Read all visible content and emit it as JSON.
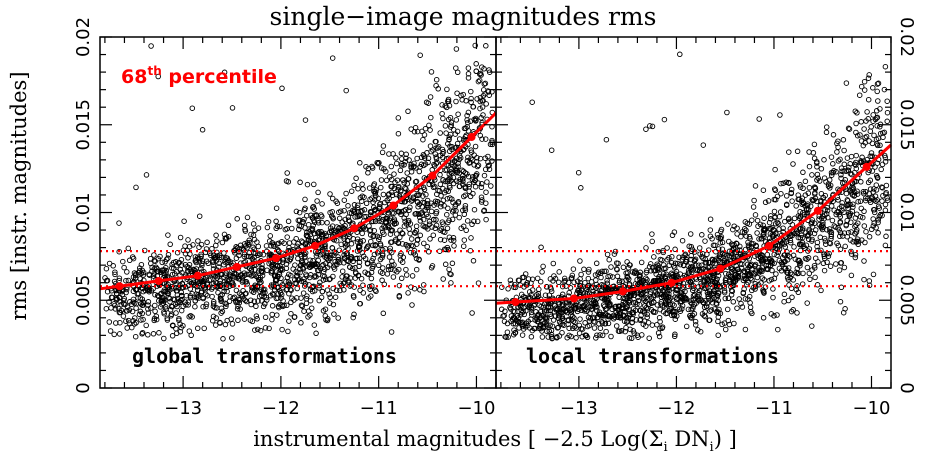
{
  "figure": {
    "title": "single−image magnitudes rms",
    "ylabel": "rms [instr. magnitudes]",
    "xlabel_main": "instrumental magnitudes [  −2.5 Log(Σ",
    "xlabel_sub1": "i",
    "xlabel_mid": " DN",
    "xlabel_sub2": "i",
    "xlabel_end": ") ]",
    "percentile_num": "68",
    "percentile_sup": "th",
    "percentile_word": " percentile",
    "colors": {
      "points": "#000000",
      "fit": "#ff0000",
      "reference_lines": "#ff0000",
      "background": "#ffffff"
    }
  },
  "chart_data": [
    {
      "type": "scatter",
      "panel_label": "global transformations",
      "xlim": [
        -13.85,
        -9.8
      ],
      "ylim": [
        0,
        0.02
      ],
      "xticks": [
        -13,
        -12,
        -11,
        -10
      ],
      "xtick_labels": [
        "−13",
        "−12",
        "−11",
        "−10"
      ],
      "yticks": [
        0,
        0.005,
        0.01,
        0.015,
        0.02
      ],
      "ytick_labels": [
        "0",
        "0.005",
        "0.01",
        "0.015",
        "0.02"
      ],
      "reference_lines_y": [
        0.0058,
        0.0078
      ],
      "fit_points": {
        "x": [
          -13.65,
          -13.25,
          -12.85,
          -12.45,
          -12.05,
          -11.65,
          -11.25,
          -10.85,
          -10.45,
          -10.05
        ],
        "y": [
          0.0058,
          0.0061,
          0.0064,
          0.0069,
          0.0074,
          0.0081,
          0.0091,
          0.0104,
          0.0121,
          0.0143
        ]
      },
      "scatter_model": {
        "n": 2100,
        "outliers": 25,
        "seed": 11
      }
    },
    {
      "type": "scatter",
      "panel_label": "local transformations",
      "xlim": [
        -13.85,
        -9.8
      ],
      "ylim": [
        0,
        0.02
      ],
      "xticks": [
        -13,
        -12,
        -11,
        -10
      ],
      "xtick_labels": [
        "−13",
        "−12",
        "−11",
        "−10"
      ],
      "yticks": [
        0,
        0.005,
        0.01,
        0.015,
        0.02
      ],
      "ytick_labels": [
        "0",
        "0.005",
        "0.01",
        "0.015",
        "0.02"
      ],
      "reference_lines_y": [
        0.0058,
        0.0078
      ],
      "fit_points": {
        "x": [
          -13.65,
          -13.05,
          -12.55,
          -12.05,
          -11.55,
          -11.05,
          -10.55,
          -10.05
        ],
        "y": [
          0.0049,
          0.0051,
          0.0055,
          0.006,
          0.0068,
          0.0081,
          0.0101,
          0.0126
        ]
      },
      "scatter_model": {
        "n": 2100,
        "outliers": 22,
        "seed": 29
      }
    }
  ]
}
